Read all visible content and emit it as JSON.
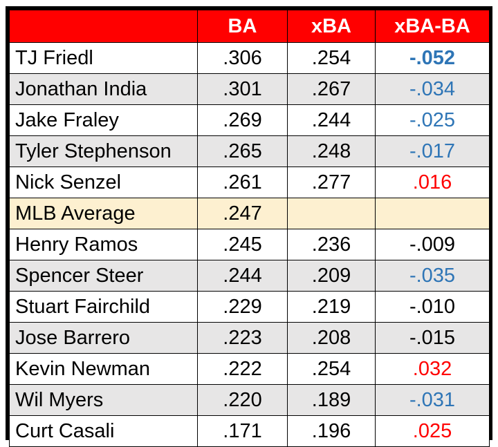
{
  "chart_data": {
    "type": "table",
    "columns": [
      "",
      "BA",
      "xBA",
      "xBA-BA"
    ],
    "rows": [
      {
        "name": "TJ Friedl",
        "ba": ".306",
        "xba": ".254",
        "diff": "-.052",
        "diff_style": "neg-bold"
      },
      {
        "name": "Jonathan India",
        "ba": ".301",
        "xba": ".267",
        "diff": "-.034",
        "diff_style": "neg"
      },
      {
        "name": "Jake Fraley",
        "ba": ".269",
        "xba": ".244",
        "diff": "-.025",
        "diff_style": "neg"
      },
      {
        "name": "Tyler Stephenson",
        "ba": ".265",
        "xba": ".248",
        "diff": "-.017",
        "diff_style": "neg"
      },
      {
        "name": "Nick Senzel",
        "ba": ".261",
        "xba": ".277",
        "diff": ".016",
        "diff_style": "pos"
      },
      {
        "name": "MLB Average",
        "ba": ".247",
        "xba": "",
        "diff": "",
        "diff_style": "neutral",
        "highlight": true
      },
      {
        "name": "Henry Ramos",
        "ba": ".245",
        "xba": ".236",
        "diff": "-.009",
        "diff_style": "neutral"
      },
      {
        "name": "Spencer Steer",
        "ba": ".244",
        "xba": ".209",
        "diff": "-.035",
        "diff_style": "neg"
      },
      {
        "name": "Stuart Fairchild",
        "ba": ".229",
        "xba": ".219",
        "diff": "-.010",
        "diff_style": "neutral"
      },
      {
        "name": "Jose Barrero",
        "ba": ".223",
        "xba": ".208",
        "diff": "-.015",
        "diff_style": "neutral"
      },
      {
        "name": "Kevin Newman",
        "ba": ".222",
        "xba": ".254",
        "diff": ".032",
        "diff_style": "pos"
      },
      {
        "name": "Wil Myers",
        "ba": ".220",
        "xba": ".189",
        "diff": "-.031",
        "diff_style": "neg"
      },
      {
        "name": "Curt Casali",
        "ba": ".171",
        "xba": ".196",
        "diff": ".025",
        "diff_style": "pos"
      }
    ]
  },
  "colors": {
    "header_bg": "#ff0000",
    "header_text": "#ffffff",
    "row_alt_bg": "#e7e6e6",
    "highlight_bg": "#fdf0d0",
    "negative_text": "#2e75b6",
    "positive_text": "#ff0000",
    "border": "#000000"
  }
}
